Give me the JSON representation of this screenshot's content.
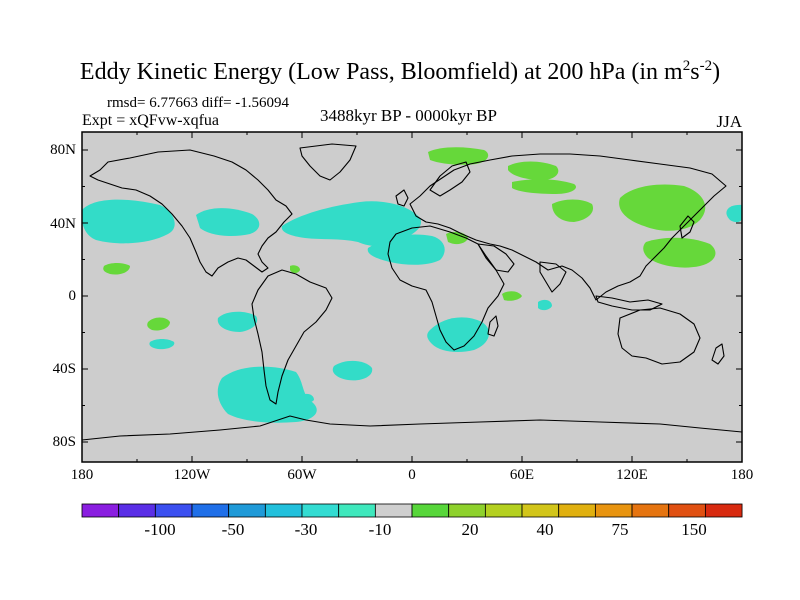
{
  "title_main": "Eddy Kinetic Energy (Low Pass, Bloomfield) at 200 hPa (in m",
  "title_sup1": "2",
  "title_mid": "s",
  "title_sup2": "-2",
  "title_end": ")",
  "stats": "rmsd= 6.77663 diff= -1.56094",
  "experiment": "Expt = xQFvw-xqfua",
  "period": "3488kyr BP - 0000kyr BP",
  "season": "JJA",
  "lat_labels": [
    "80N",
    "40N",
    "0",
    "40S",
    "80S"
  ],
  "lon_labels": [
    "180",
    "120W",
    "60W",
    "0",
    "60E",
    "120E",
    "180"
  ],
  "colorbar": {
    "colors": [
      "#8a1ee0",
      "#5a2ee6",
      "#3b4ff0",
      "#1f6fe8",
      "#1f9ad8",
      "#22c0dc",
      "#33dcd2",
      "#3fe8bd",
      "#cfcfcf",
      "#57d63a",
      "#8ed12c",
      "#b4d020",
      "#d2c51a",
      "#e0b010",
      "#e89410",
      "#e57410",
      "#e05012",
      "#d82a10"
    ],
    "labels": [
      "-100",
      "-50",
      "-30",
      "-10",
      "20",
      "40",
      "75",
      "150"
    ]
  },
  "map": {
    "background_color": "#cdcdcd",
    "negative_anomaly_color": "#33dcc8",
    "positive_anomaly_color": "#66d83a"
  }
}
